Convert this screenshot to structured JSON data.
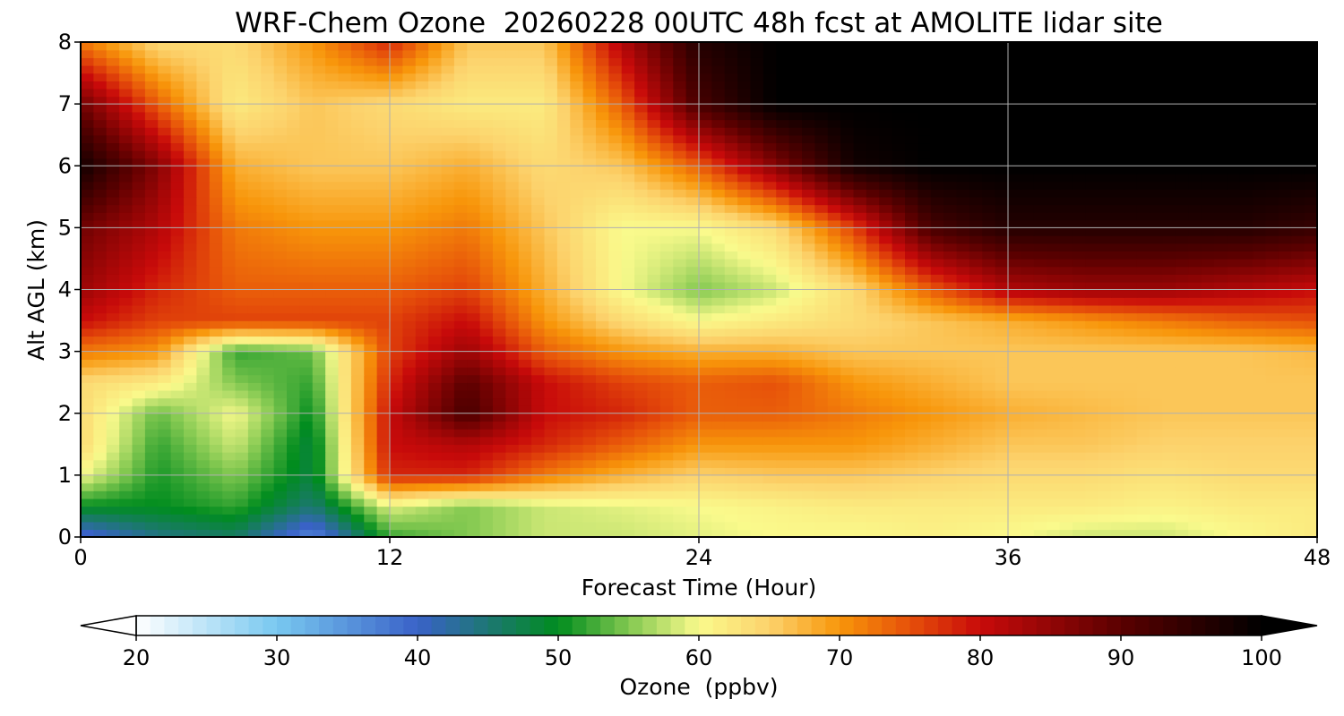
{
  "chart_data": {
    "type": "heatmap",
    "title": "WRF-Chem Ozone  20260228 00UTC 48h fcst at AMOLITE lidar site",
    "xlabel": "Forecast Time (Hour)",
    "ylabel": "Alt AGL (km)",
    "xlim": [
      0,
      48
    ],
    "ylim": [
      0,
      8
    ],
    "x_ticks": [
      0,
      12,
      24,
      36,
      48
    ],
    "y_ticks": [
      0,
      1,
      2,
      3,
      4,
      5,
      6,
      7,
      8
    ],
    "grid": true,
    "x": [
      0,
      3,
      6,
      9,
      12,
      15,
      18,
      21,
      24,
      27,
      30,
      33,
      36,
      39,
      42,
      45,
      48
    ],
    "y": [
      0,
      0.5,
      1,
      1.5,
      2,
      2.5,
      3,
      3.5,
      4,
      5,
      6,
      7,
      8
    ],
    "values": [
      [
        38,
        44,
        46,
        36,
        52,
        55,
        58,
        58,
        59,
        60,
        60,
        61,
        60,
        58,
        58,
        60,
        62
      ],
      [
        50,
        50,
        52,
        45,
        59,
        55,
        58,
        59,
        60,
        61,
        62,
        62,
        62,
        62,
        61,
        62,
        62
      ],
      [
        60,
        51,
        55,
        48,
        78,
        78,
        72,
        68,
        65,
        66,
        66,
        65,
        64,
        64,
        63,
        64,
        64
      ],
      [
        64,
        52,
        58,
        48,
        80,
        82,
        78,
        74,
        70,
        70,
        70,
        68,
        66,
        66,
        65,
        65,
        65
      ],
      [
        64,
        54,
        60,
        50,
        80,
        92,
        80,
        78,
        74,
        74,
        72,
        70,
        68,
        67,
        66,
        66,
        66
      ],
      [
        64,
        62,
        55,
        52,
        78,
        90,
        80,
        76,
        74,
        75,
        70,
        68,
        66,
        66,
        66,
        66,
        66
      ],
      [
        72,
        70,
        52,
        54,
        76,
        84,
        74,
        70,
        68,
        68,
        66,
        66,
        66,
        66,
        66,
        66,
        67
      ],
      [
        80,
        76,
        76,
        76,
        76,
        80,
        70,
        64,
        60,
        62,
        64,
        66,
        68,
        70,
        72,
        74,
        75
      ],
      [
        84,
        78,
        74,
        74,
        74,
        76,
        68,
        60,
        55,
        58,
        64,
        74,
        82,
        84,
        84,
        82,
        80
      ],
      [
        88,
        82,
        72,
        70,
        70,
        72,
        66,
        60,
        60,
        64,
        76,
        92,
        96,
        96,
        96,
        96,
        94
      ],
      [
        98,
        86,
        68,
        66,
        66,
        68,
        64,
        66,
        74,
        86,
        98,
        100,
        100,
        100,
        100,
        100,
        100
      ],
      [
        88,
        74,
        62,
        66,
        64,
        62,
        62,
        74,
        92,
        100,
        100,
        100,
        100,
        100,
        100,
        100,
        100
      ],
      [
        72,
        64,
        64,
        70,
        78,
        66,
        66,
        82,
        96,
        100,
        100,
        100,
        100,
        100,
        100,
        100,
        100
      ]
    ],
    "colorbar": {
      "label": "Ozone  (ppbv)",
      "min": 20,
      "max": 100,
      "ticks": [
        20,
        30,
        40,
        50,
        60,
        70,
        80,
        90,
        100
      ],
      "extend": "both",
      "color_stops": [
        {
          "value": 20,
          "color": "#ffffff"
        },
        {
          "value": 30,
          "color": "#78c8f0"
        },
        {
          "value": 40,
          "color": "#3a62c8"
        },
        {
          "value": 50,
          "color": "#008c1e"
        },
        {
          "value": 55,
          "color": "#82c850"
        },
        {
          "value": 60,
          "color": "#fafa8c"
        },
        {
          "value": 65,
          "color": "#fcd26c"
        },
        {
          "value": 70,
          "color": "#f8960a"
        },
        {
          "value": 75,
          "color": "#e6500a"
        },
        {
          "value": 80,
          "color": "#c80a0a"
        },
        {
          "value": 90,
          "color": "#5a0000"
        },
        {
          "value": 100,
          "color": "#000000"
        }
      ]
    }
  },
  "colors": {
    "grid": "#b0b0b0",
    "axis": "#000000"
  }
}
